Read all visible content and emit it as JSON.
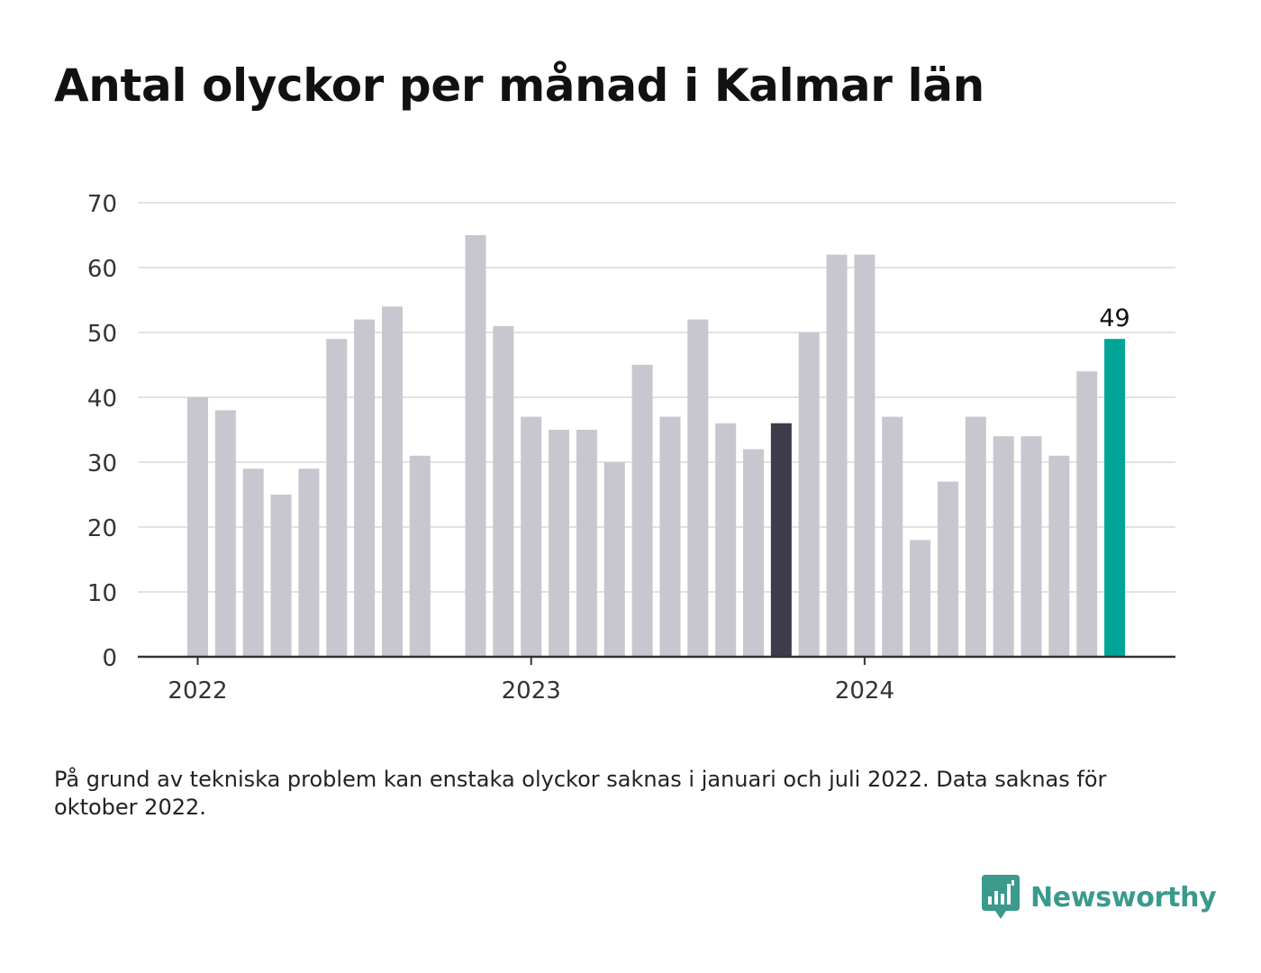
{
  "title": "Antal olyckor per månad i Kalmar län",
  "footnote": "På grund av tekniska problem kan enstaka olyckor saknas i januari och juli 2022. Data saknas för oktober 2022.",
  "brand": {
    "name": "Newsworthy",
    "icon": "newsworthy-logo-icon",
    "color": "#3a9a8c"
  },
  "colors": {
    "bar_default": "#c8c7d0",
    "bar_highlight_dark": "#3d3c4a",
    "bar_latest": "#00a597",
    "grid": "#e2e2e2",
    "axis": "#333333",
    "label": "#333333"
  },
  "chart_data": {
    "type": "bar",
    "title": "Antal olyckor per månad i Kalmar län",
    "xlabel": "",
    "ylabel": "",
    "ylim": [
      0,
      70
    ],
    "yticks": [
      "0",
      "10",
      "20",
      "30",
      "40",
      "50",
      "60",
      "70"
    ],
    "xticks": [
      "2022",
      "2023",
      "2024"
    ],
    "grid": true,
    "categories": [
      "2022-01",
      "2022-02",
      "2022-03",
      "2022-04",
      "2022-05",
      "2022-06",
      "2022-07",
      "2022-08",
      "2022-09",
      "2022-10",
      "2022-11",
      "2022-12",
      "2023-01",
      "2023-02",
      "2023-03",
      "2023-04",
      "2023-05",
      "2023-06",
      "2023-07",
      "2023-08",
      "2023-09",
      "2023-10",
      "2023-11",
      "2023-12",
      "2024-01",
      "2024-02",
      "2024-03",
      "2024-04",
      "2024-05",
      "2024-06",
      "2024-07",
      "2024-08",
      "2024-09",
      "2024-10"
    ],
    "values": [
      40,
      38,
      29,
      25,
      29,
      49,
      52,
      54,
      31,
      null,
      65,
      51,
      37,
      35,
      35,
      30,
      45,
      37,
      52,
      36,
      32,
      36,
      50,
      62,
      62,
      37,
      18,
      27,
      37,
      34,
      34,
      31,
      44,
      49
    ],
    "highlighted": [
      "2023-10"
    ],
    "latest": "2024-10",
    "data_labels": [
      {
        "category": "2024-10",
        "text": "49"
      }
    ]
  }
}
